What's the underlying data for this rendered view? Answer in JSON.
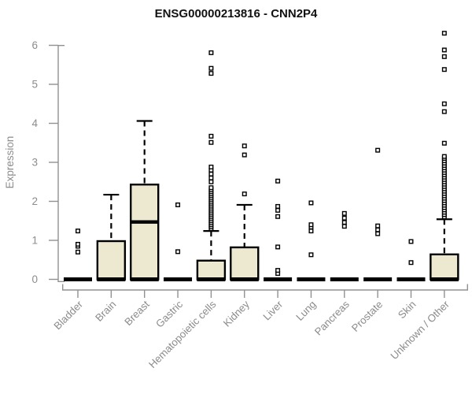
{
  "chart_data": {
    "type": "boxplot",
    "title": "ENSG00000213816 - CNN2P4",
    "ylabel": "Expression",
    "xlabel": "",
    "ylim": [
      0,
      6.5
    ],
    "yticks": [
      0,
      1,
      2,
      3,
      4,
      5,
      6
    ],
    "grid": false,
    "legend": false,
    "colors": {
      "box_fill": "#EDE8D0",
      "box_stroke": "#000000",
      "axis": "#919191",
      "tick_text": "#8c8c8c",
      "title_text": "#111111"
    },
    "categories": [
      "Bladder",
      "Brain",
      "Breast",
      "Gastric",
      "Hematopoietic cells",
      "Kidney",
      "Liver",
      "Lung",
      "Pancreas",
      "Prostate",
      "Skin",
      "Unknown / Other"
    ],
    "series": [
      {
        "category": "Bladder",
        "min": 0,
        "q1": 0,
        "median": 0,
        "q3": 0,
        "whisker_high": 0,
        "outliers": [
          0.7,
          0.85,
          0.9,
          1.24
        ]
      },
      {
        "category": "Brain",
        "min": 0,
        "q1": 0,
        "median": 0,
        "q3": 0.98,
        "whisker_high": 2.17,
        "outliers": []
      },
      {
        "category": "Breast",
        "min": 0,
        "q1": 0,
        "median": 1.47,
        "q3": 2.43,
        "whisker_high": 4.06,
        "outliers": []
      },
      {
        "category": "Gastric",
        "min": 0,
        "q1": 0,
        "median": 0,
        "q3": 0,
        "whisker_high": 0,
        "outliers": [
          0.71,
          1.91
        ]
      },
      {
        "category": "Hematopoietic cells",
        "min": 0,
        "q1": 0,
        "median": 0,
        "q3": 0.48,
        "whisker_high": 1.24,
        "outliers": [
          1.3,
          1.35,
          1.4,
          1.45,
          1.5,
          1.55,
          1.6,
          1.65,
          1.7,
          1.75,
          1.8,
          1.85,
          1.9,
          1.95,
          2.0,
          2.05,
          2.1,
          2.15,
          2.2,
          2.25,
          2.3,
          2.35,
          2.5,
          2.6,
          2.7,
          2.8,
          2.88,
          3.51,
          3.67,
          5.28,
          5.41,
          5.81
        ]
      },
      {
        "category": "Kidney",
        "min": 0,
        "q1": 0,
        "median": 0,
        "q3": 0.82,
        "whisker_high": 1.91,
        "outliers": [
          2.19,
          3.19,
          3.42
        ]
      },
      {
        "category": "Liver",
        "min": 0,
        "q1": 0,
        "median": 0,
        "q3": 0,
        "whisker_high": 0,
        "outliers": [
          0.15,
          0.23,
          0.83,
          1.61,
          1.77,
          1.87,
          2.52
        ]
      },
      {
        "category": "Lung",
        "min": 0,
        "q1": 0,
        "median": 0,
        "q3": 0,
        "whisker_high": 0,
        "outliers": [
          0.63,
          1.24,
          1.34,
          1.4,
          1.96
        ]
      },
      {
        "category": "Pancreas",
        "min": 0,
        "q1": 0,
        "median": 0,
        "q3": 0,
        "whisker_high": 0,
        "outliers": [
          1.36,
          1.46,
          1.57,
          1.69
        ]
      },
      {
        "category": "Prostate",
        "min": 0,
        "q1": 0,
        "median": 0,
        "q3": 0,
        "whisker_high": 0,
        "outliers": [
          1.17,
          1.27,
          1.37,
          3.31
        ]
      },
      {
        "category": "Skin",
        "min": 0,
        "q1": 0,
        "median": 0,
        "q3": 0,
        "whisker_high": 0,
        "outliers": [
          0.43,
          0.97
        ]
      },
      {
        "category": "Unknown / Other",
        "min": 0,
        "q1": 0,
        "median": 0,
        "q3": 0.64,
        "whisker_high": 1.54,
        "outliers": [
          1.6,
          1.66,
          1.72,
          1.78,
          1.84,
          1.9,
          1.96,
          2.02,
          2.08,
          2.14,
          2.2,
          2.26,
          2.32,
          2.38,
          2.44,
          2.5,
          2.56,
          2.62,
          2.68,
          2.74,
          2.8,
          2.86,
          2.92,
          2.98,
          3.04,
          3.1,
          3.15,
          3.49,
          4.3,
          4.5,
          5.38,
          5.71,
          5.88,
          6.31
        ]
      }
    ]
  }
}
